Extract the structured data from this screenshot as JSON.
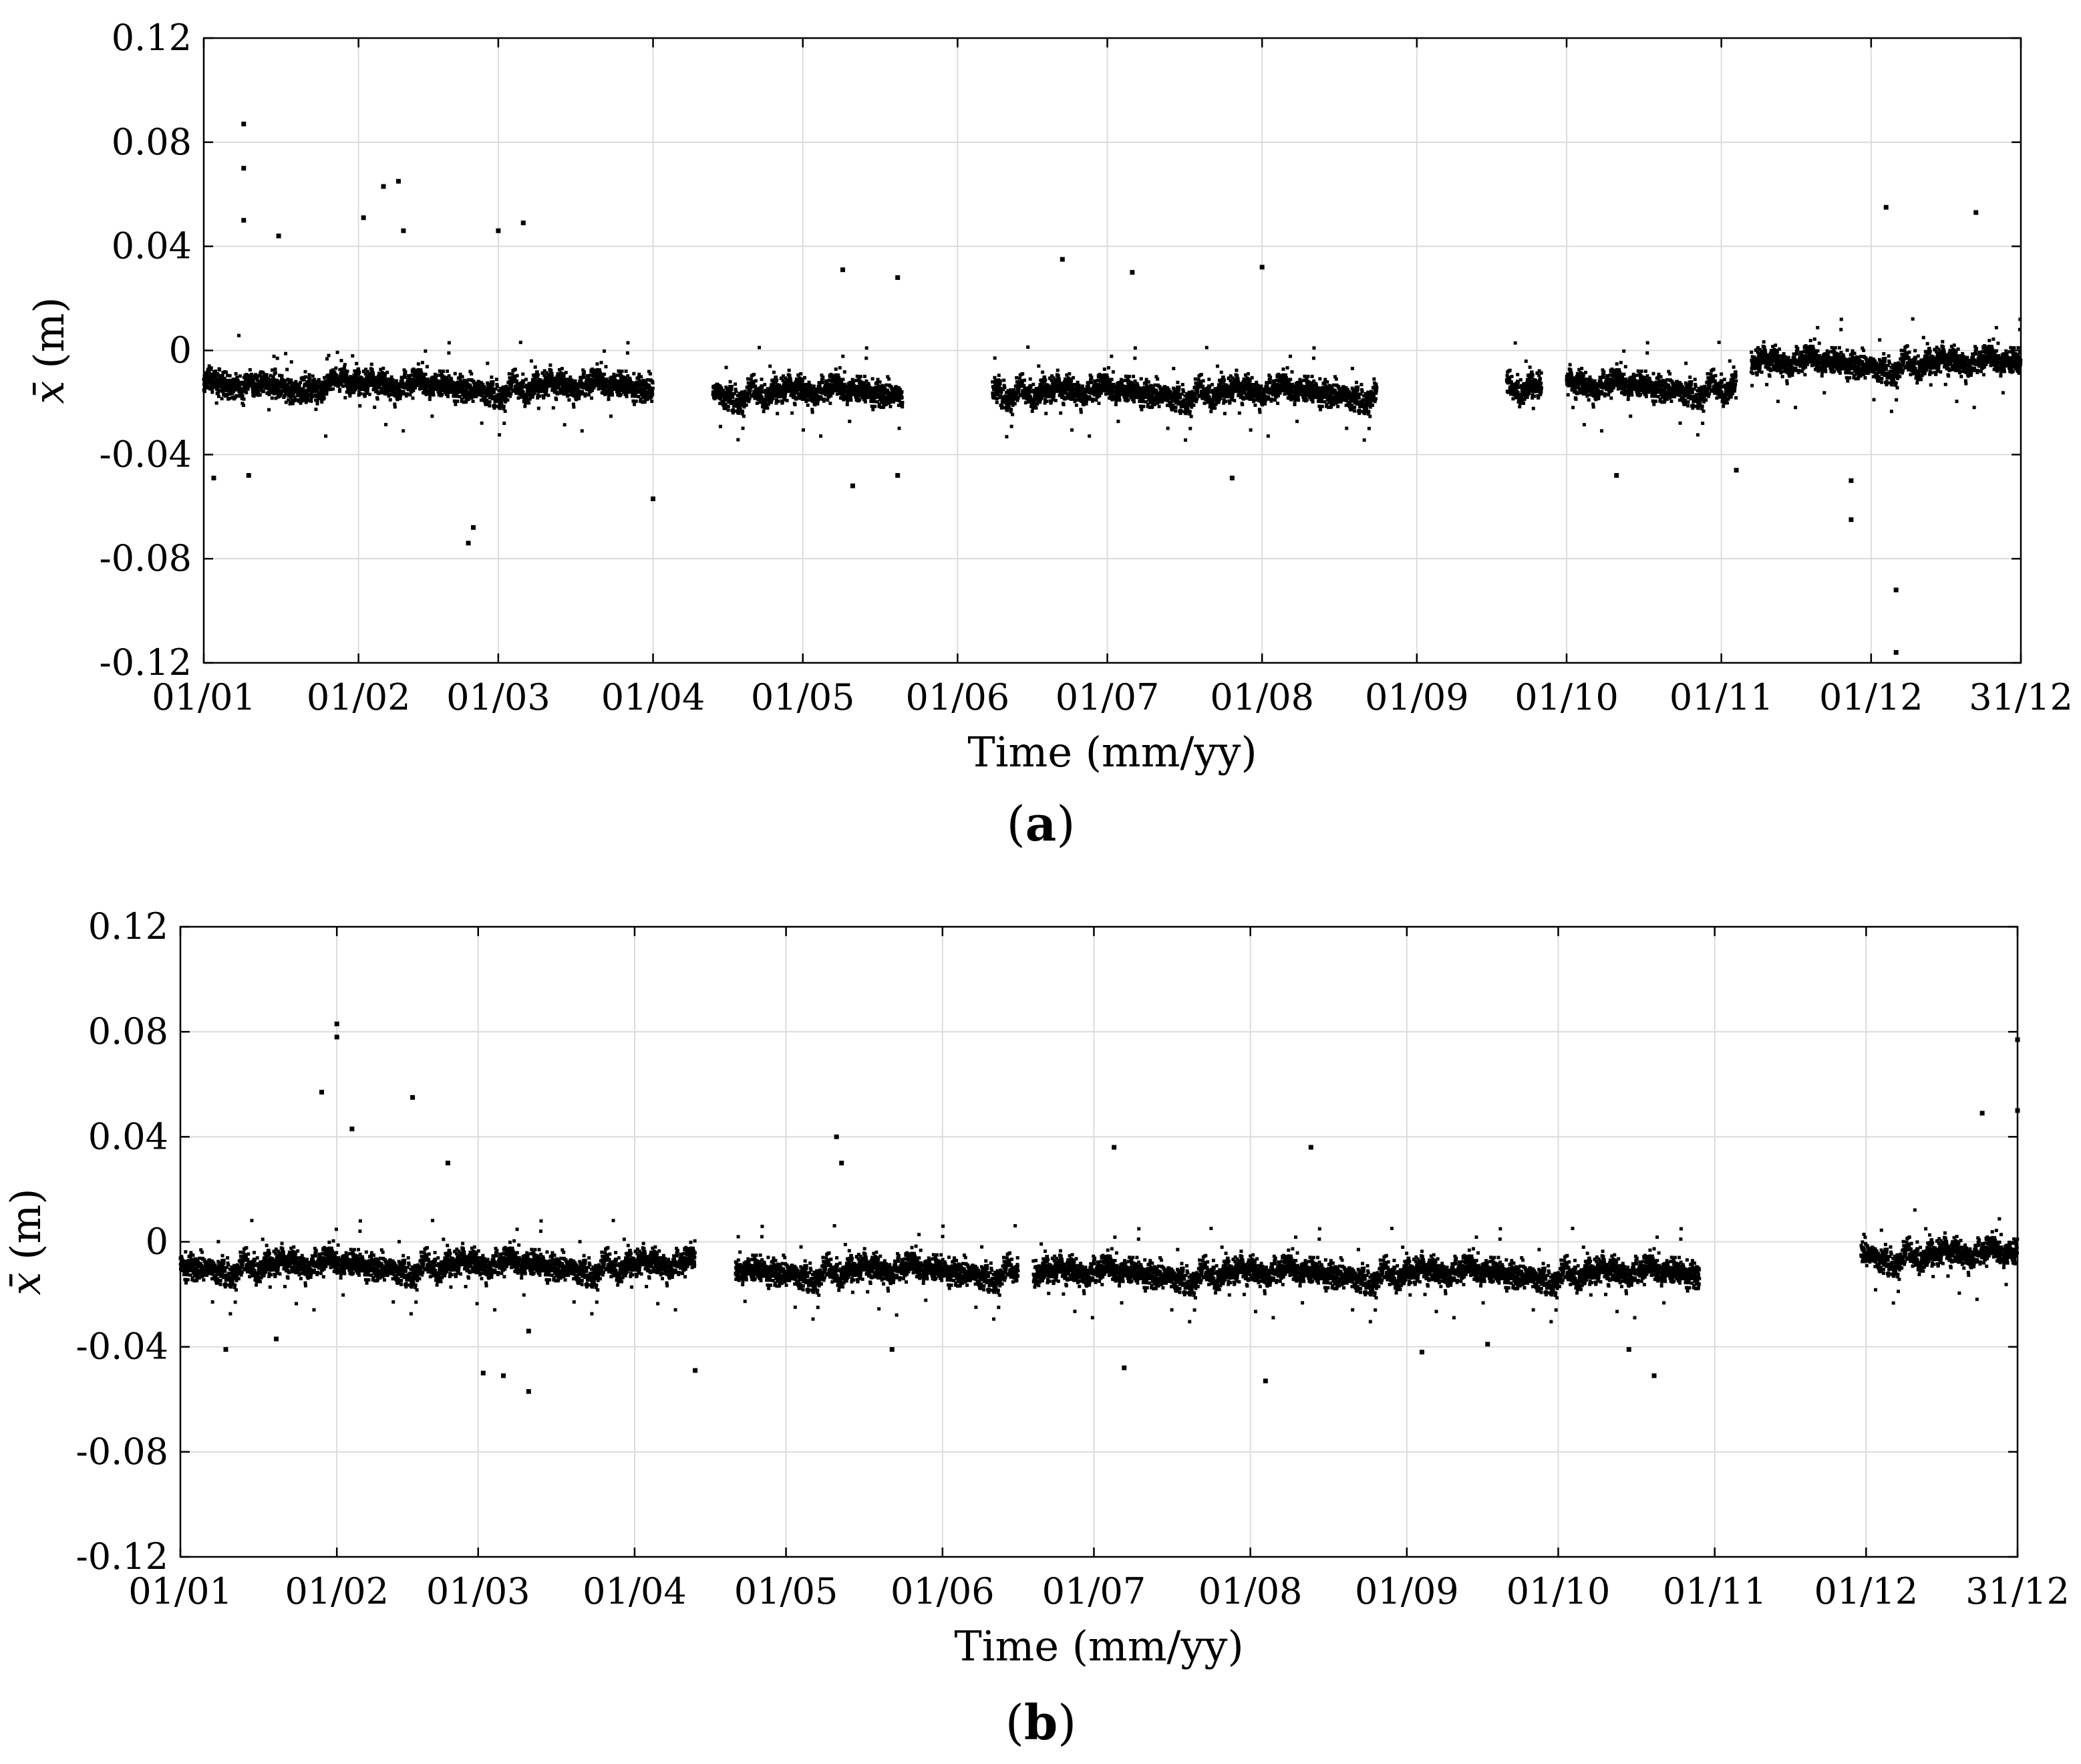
{
  "chart_data": [
    {
      "type": "scatter",
      "panel_label": "a",
      "xlabel": "Time (mm/yy)",
      "ylabel_symbol": "x̄",
      "ylabel_unit": "(m)",
      "ylim": [
        -0.12,
        0.12
      ],
      "yticks": [
        0.12,
        0.08,
        0.04,
        0,
        -0.04,
        -0.08,
        -0.12
      ],
      "ytick_labels": [
        "0.12",
        "0.08",
        "0.04",
        "0",
        "-0.04",
        "-0.08",
        "-0.12"
      ],
      "xlim": [
        "2019-01-01",
        "2019-12-31"
      ],
      "xticks": [
        "2019-01-01",
        "2019-02-01",
        "2019-03-01",
        "2019-04-01",
        "2019-05-01",
        "2019-06-01",
        "2019-07-01",
        "2019-08-01",
        "2019-09-01",
        "2019-10-01",
        "2019-11-01",
        "2019-12-01",
        "2019-12-31"
      ],
      "xtick_labels": [
        "01/01",
        "01/02",
        "01/03",
        "01/04",
        "01/05",
        "01/06",
        "01/07",
        "01/08",
        "01/09",
        "01/10",
        "01/11",
        "01/12",
        "31/12"
      ],
      "grid": true,
      "marker_color": "#000000",
      "data_segments": [
        {
          "start": "2019-01-01",
          "end": "2019-04-01",
          "mean": -0.013
        },
        {
          "start": "2019-04-13",
          "end": "2019-05-21",
          "mean": -0.015
        },
        {
          "start": "2019-06-08",
          "end": "2019-08-24",
          "mean": -0.015
        },
        {
          "start": "2019-09-19",
          "end": "2019-09-26",
          "mean": -0.013
        },
        {
          "start": "2019-10-01",
          "end": "2019-11-04",
          "mean": -0.013
        },
        {
          "start": "2019-11-07",
          "end": "2019-12-31",
          "mean": -0.004
        }
      ],
      "outliers": [
        {
          "x": "2019-01-09",
          "y": 0.087
        },
        {
          "x": "2019-01-09",
          "y": 0.07
        },
        {
          "x": "2019-01-09",
          "y": 0.05
        },
        {
          "x": "2019-01-16",
          "y": 0.044
        },
        {
          "x": "2019-02-02",
          "y": 0.051
        },
        {
          "x": "2019-02-06",
          "y": 0.063
        },
        {
          "x": "2019-02-09",
          "y": 0.065
        },
        {
          "x": "2019-02-10",
          "y": 0.046
        },
        {
          "x": "2019-02-23",
          "y": -0.074
        },
        {
          "x": "2019-02-24",
          "y": -0.068
        },
        {
          "x": "2019-03-06",
          "y": 0.049
        },
        {
          "x": "2019-03-01",
          "y": 0.046
        },
        {
          "x": "2019-01-03",
          "y": -0.049
        },
        {
          "x": "2019-01-10",
          "y": -0.048
        },
        {
          "x": "2019-04-01",
          "y": -0.057
        },
        {
          "x": "2019-05-09",
          "y": 0.031
        },
        {
          "x": "2019-05-11",
          "y": -0.052
        },
        {
          "x": "2019-05-20",
          "y": 0.028
        },
        {
          "x": "2019-05-20",
          "y": -0.048
        },
        {
          "x": "2019-06-22",
          "y": 0.035
        },
        {
          "x": "2019-07-06",
          "y": 0.03
        },
        {
          "x": "2019-07-26",
          "y": -0.049
        },
        {
          "x": "2019-08-01",
          "y": 0.032
        },
        {
          "x": "2019-10-11",
          "y": -0.048
        },
        {
          "x": "2019-11-04",
          "y": -0.046
        },
        {
          "x": "2019-11-27",
          "y": -0.065
        },
        {
          "x": "2019-11-27",
          "y": -0.05
        },
        {
          "x": "2019-12-04",
          "y": 0.055
        },
        {
          "x": "2019-12-06",
          "y": -0.092
        },
        {
          "x": "2019-12-06",
          "y": -0.116
        },
        {
          "x": "2019-12-22",
          "y": 0.053
        }
      ]
    },
    {
      "type": "scatter",
      "panel_label": "b",
      "xlabel": "Time (mm/yy)",
      "ylabel_symbol": "x̄",
      "ylabel_unit": "(m)",
      "ylim": [
        -0.12,
        0.12
      ],
      "yticks": [
        0.12,
        0.08,
        0.04,
        0,
        -0.04,
        -0.08,
        -0.12
      ],
      "ytick_labels": [
        "0.12",
        "0.08",
        "0.04",
        "0",
        "-0.04",
        "-0.08",
        "-0.12"
      ],
      "xlim": [
        "2019-01-01",
        "2019-12-31"
      ],
      "xticks": [
        "2019-01-01",
        "2019-02-01",
        "2019-03-01",
        "2019-04-01",
        "2019-05-01",
        "2019-06-01",
        "2019-07-01",
        "2019-08-01",
        "2019-09-01",
        "2019-10-01",
        "2019-11-01",
        "2019-12-01",
        "2019-12-31"
      ],
      "xtick_labels": [
        "01/01",
        "01/02",
        "01/03",
        "01/04",
        "01/05",
        "01/06",
        "01/07",
        "01/08",
        "01/09",
        "01/10",
        "01/11",
        "01/12",
        "31/12"
      ],
      "grid": true,
      "marker_color": "#000000",
      "data_segments": [
        {
          "start": "2019-01-01",
          "end": "2019-04-13",
          "mean": -0.008
        },
        {
          "start": "2019-04-21",
          "end": "2019-06-16",
          "mean": -0.01
        },
        {
          "start": "2019-06-19",
          "end": "2019-10-29",
          "mean": -0.011
        },
        {
          "start": "2019-11-30",
          "end": "2019-12-31",
          "mean": -0.004
        }
      ],
      "outliers": [
        {
          "x": "2019-02-01",
          "y": 0.083
        },
        {
          "x": "2019-02-01",
          "y": 0.078
        },
        {
          "x": "2019-01-29",
          "y": 0.057
        },
        {
          "x": "2019-02-16",
          "y": 0.055
        },
        {
          "x": "2019-02-04",
          "y": 0.043
        },
        {
          "x": "2019-02-23",
          "y": 0.03
        },
        {
          "x": "2019-01-10",
          "y": -0.041
        },
        {
          "x": "2019-01-20",
          "y": -0.037
        },
        {
          "x": "2019-03-02",
          "y": -0.05
        },
        {
          "x": "2019-03-06",
          "y": -0.051
        },
        {
          "x": "2019-03-11",
          "y": -0.057
        },
        {
          "x": "2019-03-11",
          "y": -0.034
        },
        {
          "x": "2019-04-13",
          "y": -0.049
        },
        {
          "x": "2019-05-11",
          "y": 0.04
        },
        {
          "x": "2019-05-12",
          "y": 0.03
        },
        {
          "x": "2019-05-22",
          "y": -0.041
        },
        {
          "x": "2019-07-05",
          "y": 0.036
        },
        {
          "x": "2019-07-07",
          "y": -0.048
        },
        {
          "x": "2019-08-04",
          "y": -0.053
        },
        {
          "x": "2019-08-13",
          "y": 0.036
        },
        {
          "x": "2019-09-04",
          "y": -0.042
        },
        {
          "x": "2019-09-17",
          "y": -0.039
        },
        {
          "x": "2019-10-15",
          "y": -0.041
        },
        {
          "x": "2019-10-20",
          "y": -0.051
        },
        {
          "x": "2019-12-24",
          "y": 0.049
        },
        {
          "x": "2019-12-31",
          "y": 0.077
        },
        {
          "x": "2019-12-31",
          "y": 0.05
        }
      ]
    }
  ]
}
